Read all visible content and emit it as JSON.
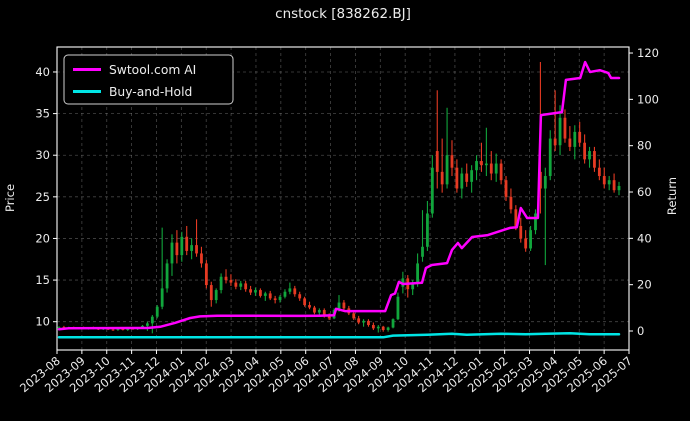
{
  "title": "cnstock [838262.BJ]",
  "legend": {
    "items": [
      {
        "label": "Swtool.com AI",
        "color": "#ff00ff"
      },
      {
        "label": "Buy-and-Hold",
        "color": "#00e5e5"
      }
    ]
  },
  "axes": {
    "left_label": "Price",
    "right_label": "Return",
    "price_ticks": [
      10,
      15,
      20,
      25,
      30,
      35,
      40
    ],
    "return_ticks": [
      0,
      20,
      40,
      60,
      80,
      100,
      120
    ],
    "x_tick_labels": [
      "2023-08",
      "2023-09",
      "2023-10",
      "2023-11",
      "2023-12",
      "2024-01",
      "2024-02",
      "2024-03",
      "2024-04",
      "2024-05",
      "2024-06",
      "2024-07",
      "2024-08",
      "2024-09",
      "2024-10",
      "2024-11",
      "2024-12",
      "2025-01",
      "2025-02",
      "2025-03",
      "2025-04",
      "2025-05",
      "2025-06",
      "2025-07"
    ],
    "left_ylim": [
      6.6,
      43.0
    ],
    "right_ylim": [
      -8.2,
      122.6
    ],
    "grid": true
  },
  "chart_data": {
    "type": "candlestick+line",
    "title": "cnstock [838262.BJ]",
    "x_range": [
      "2023-08",
      "2025-07"
    ],
    "candle_up_color": "#11a63c",
    "candle_down_color": "#e63a23",
    "candles_ohlc": [
      [
        9.3,
        9.45,
        9.15,
        9.35
      ],
      [
        9.35,
        9.5,
        9.2,
        9.25
      ],
      [
        9.25,
        9.4,
        9.1,
        9.3
      ],
      [
        9.3,
        9.4,
        9.15,
        9.2
      ],
      [
        9.2,
        9.35,
        9.1,
        9.3
      ],
      [
        9.3,
        9.4,
        9.1,
        9.15
      ],
      [
        9.15,
        9.3,
        9.05,
        9.25
      ],
      [
        9.25,
        9.4,
        9.1,
        9.15
      ],
      [
        9.15,
        9.3,
        9.0,
        9.1
      ],
      [
        9.1,
        9.25,
        9.0,
        9.2
      ],
      [
        9.2,
        9.3,
        9.0,
        9.05
      ],
      [
        9.05,
        9.2,
        8.9,
        9.0
      ],
      [
        9.0,
        9.15,
        8.9,
        9.1
      ],
      [
        9.1,
        9.25,
        8.95,
        9.0
      ],
      [
        9.0,
        9.2,
        8.9,
        9.15
      ],
      [
        9.15,
        9.3,
        9.05,
        9.1
      ],
      [
        9.1,
        9.35,
        9.0,
        9.3
      ],
      [
        9.3,
        9.6,
        9.2,
        9.5
      ],
      [
        9.5,
        10.0,
        8.9,
        9.8
      ],
      [
        9.8,
        10.8,
        8.6,
        10.6
      ],
      [
        10.6,
        12.0,
        10.4,
        11.8
      ],
      [
        11.8,
        21.3,
        11.5,
        14.0
      ],
      [
        14.0,
        17.5,
        13.5,
        17.0
      ],
      [
        17.0,
        20.5,
        15.5,
        19.5
      ],
      [
        19.5,
        21.0,
        17.0,
        18.0
      ],
      [
        18.0,
        20.8,
        17.2,
        20.2
      ],
      [
        20.2,
        21.5,
        18.0,
        18.5
      ],
      [
        18.5,
        20.0,
        17.5,
        19.2
      ],
      [
        19.2,
        22.3,
        17.8,
        18.2
      ],
      [
        18.2,
        19.0,
        16.5,
        17.0
      ],
      [
        17.0,
        17.4,
        14.0,
        14.4
      ],
      [
        14.4,
        14.8,
        11.8,
        12.6
      ],
      [
        12.6,
        14.0,
        12.2,
        13.8
      ],
      [
        13.8,
        15.8,
        13.4,
        15.4
      ],
      [
        15.4,
        16.3,
        14.6,
        15.0
      ],
      [
        15.0,
        15.7,
        14.3,
        14.7
      ],
      [
        14.7,
        15.1,
        13.9,
        14.2
      ],
      [
        14.2,
        14.9,
        13.8,
        14.6
      ],
      [
        14.6,
        14.9,
        13.6,
        13.9
      ],
      [
        13.9,
        14.3,
        13.2,
        13.5
      ],
      [
        13.5,
        14.1,
        13.1,
        13.8
      ],
      [
        13.8,
        14.0,
        12.9,
        13.1
      ],
      [
        13.1,
        13.6,
        12.5,
        13.4
      ],
      [
        13.4,
        13.7,
        12.6,
        12.8
      ],
      [
        12.8,
        13.1,
        12.2,
        12.6
      ],
      [
        12.6,
        13.2,
        12.3,
        13.0
      ],
      [
        13.0,
        13.9,
        12.8,
        13.6
      ],
      [
        13.6,
        14.7,
        13.3,
        14.0
      ],
      [
        14.0,
        14.3,
        13.0,
        13.3
      ],
      [
        13.3,
        13.6,
        12.5,
        12.8
      ],
      [
        12.8,
        13.0,
        11.8,
        12.0
      ],
      [
        12.0,
        12.4,
        11.5,
        11.7
      ],
      [
        11.7,
        11.9,
        10.9,
        11.1
      ],
      [
        11.1,
        11.6,
        10.7,
        11.4
      ],
      [
        11.4,
        11.6,
        10.5,
        10.7
      ],
      [
        10.7,
        11.0,
        10.2,
        10.4
      ],
      [
        10.4,
        11.6,
        10.3,
        11.4
      ],
      [
        11.4,
        13.2,
        11.2,
        12.3
      ],
      [
        12.3,
        12.6,
        11.3,
        11.6
      ],
      [
        11.6,
        11.9,
        10.8,
        11.0
      ],
      [
        11.0,
        11.3,
        10.2,
        10.4
      ],
      [
        10.4,
        10.7,
        9.7,
        9.9
      ],
      [
        9.9,
        10.3,
        9.4,
        10.1
      ],
      [
        10.1,
        10.3,
        9.4,
        9.6
      ],
      [
        9.6,
        9.9,
        9.0,
        9.2
      ],
      [
        9.2,
        9.6,
        8.7,
        9.4
      ],
      [
        9.4,
        9.5,
        8.8,
        9.0
      ],
      [
        9.0,
        9.4,
        8.8,
        9.3
      ],
      [
        9.3,
        10.4,
        9.2,
        10.3
      ],
      [
        10.3,
        13.5,
        10.2,
        13.0
      ],
      [
        14.2,
        16.0,
        13.4,
        15.2
      ],
      [
        15.2,
        15.6,
        12.9,
        13.9
      ],
      [
        13.9,
        15.0,
        13.2,
        14.6
      ],
      [
        14.6,
        18.2,
        14.2,
        17.0
      ],
      [
        17.8,
        23.4,
        17.2,
        19.0
      ],
      [
        19.0,
        24.5,
        18.5,
        23.0
      ],
      [
        23.0,
        30.0,
        22.5,
        28.5
      ],
      [
        30.5,
        37.8,
        26.0,
        28.0
      ],
      [
        28.0,
        32.0,
        25.5,
        26.5
      ],
      [
        26.5,
        35.7,
        26.0,
        30.0
      ],
      [
        30.0,
        31.8,
        27.5,
        28.5
      ],
      [
        28.5,
        29.5,
        25.5,
        26.0
      ],
      [
        26.0,
        28.5,
        24.8,
        27.8
      ],
      [
        27.8,
        29.0,
        26.2,
        26.8
      ],
      [
        26.8,
        28.8,
        25.5,
        28.2
      ],
      [
        28.2,
        30.0,
        27.0,
        29.3
      ],
      [
        29.3,
        31.5,
        28.0,
        28.8
      ],
      [
        28.8,
        33.3,
        27.5,
        29.0
      ],
      [
        29.0,
        30.5,
        27.0,
        27.8
      ],
      [
        27.8,
        30.2,
        26.8,
        29.0
      ],
      [
        29.0,
        29.5,
        26.5,
        27.0
      ],
      [
        27.0,
        27.5,
        24.5,
        25.0
      ],
      [
        25.0,
        26.0,
        23.0,
        23.5
      ],
      [
        23.5,
        24.0,
        21.0,
        21.5
      ],
      [
        21.5,
        22.5,
        19.5,
        20.0
      ],
      [
        20.0,
        21.0,
        18.4,
        18.8
      ],
      [
        18.8,
        21.5,
        18.5,
        21.0
      ],
      [
        21.0,
        23.5,
        20.5,
        23.0
      ],
      [
        28.0,
        41.2,
        23.0,
        26.0
      ],
      [
        26.0,
        28.5,
        16.8,
        27.5
      ],
      [
        27.5,
        33.0,
        27.0,
        32.0
      ],
      [
        32.0,
        37.8,
        30.5,
        31.2
      ],
      [
        31.2,
        36.0,
        30.0,
        34.5
      ],
      [
        34.5,
        35.5,
        31.5,
        32.0
      ],
      [
        32.0,
        33.5,
        30.5,
        31.0
      ],
      [
        31.0,
        33.6,
        29.5,
        32.8
      ],
      [
        32.8,
        34.0,
        31.0,
        31.5
      ],
      [
        31.5,
        32.5,
        29.0,
        29.5
      ],
      [
        29.5,
        31.0,
        28.5,
        30.5
      ],
      [
        30.5,
        31.0,
        28.0,
        28.5
      ],
      [
        28.5,
        29.5,
        27.0,
        27.5
      ],
      [
        27.5,
        28.5,
        26.0,
        26.5
      ],
      [
        26.5,
        27.5,
        25.8,
        27.0
      ],
      [
        27.0,
        27.8,
        25.5,
        25.8
      ],
      [
        25.8,
        26.8,
        25.2,
        26.3
      ]
    ],
    "series": [
      {
        "name": "Swtool.com AI",
        "axis": "return",
        "color": "#ff00ff",
        "width": 2.5,
        "points": [
          [
            0,
            0.8
          ],
          [
            2,
            1.2
          ],
          [
            18,
            1.3
          ],
          [
            20.6,
            1.8
          ],
          [
            23.6,
            3.5
          ],
          [
            26.7,
            5.6
          ],
          [
            28.7,
            6.3
          ],
          [
            32.2,
            6.6
          ],
          [
            34.8,
            6.6
          ],
          [
            49,
            6.5
          ],
          [
            53,
            6.6
          ],
          [
            56,
            6.8
          ],
          [
            56.4,
            9.6
          ],
          [
            57.5,
            9.0
          ],
          [
            58.2,
            8.6
          ],
          [
            66.4,
            8.6
          ],
          [
            67.6,
            15.5
          ],
          [
            68.4,
            16.2
          ],
          [
            69.2,
            21.2
          ],
          [
            70,
            20.3
          ],
          [
            73.9,
            20.8
          ],
          [
            74.7,
            27.2
          ],
          [
            75.9,
            28.5
          ],
          [
            79,
            29.3
          ],
          [
            80,
            35.0
          ],
          [
            81.2,
            38.0
          ],
          [
            82,
            35.8
          ],
          [
            84.1,
            40.6
          ],
          [
            87.3,
            41.4
          ],
          [
            91.8,
            44.5
          ],
          [
            93.2,
            44.8
          ],
          [
            94,
            53.1
          ],
          [
            95.3,
            48.8
          ],
          [
            97.5,
            48.8
          ],
          [
            98.1,
            93.2
          ],
          [
            102.4,
            94.5
          ],
          [
            103.2,
            108.4
          ],
          [
            106.1,
            109.2
          ],
          [
            107.1,
            116.1
          ],
          [
            108.1,
            111.8
          ],
          [
            110.1,
            112.6
          ],
          [
            111.8,
            111.4
          ],
          [
            112.4,
            109.2
          ],
          [
            114,
            109.2
          ]
        ]
      },
      {
        "name": "Buy-and-Hold",
        "axis": "return",
        "color": "#00e5e5",
        "width": 2.5,
        "points": [
          [
            0,
            -2.7
          ],
          [
            66,
            -2.7
          ],
          [
            68,
            -2.0
          ],
          [
            75,
            -1.6
          ],
          [
            80,
            -1.2
          ],
          [
            83,
            -1.6
          ],
          [
            90,
            -1.2
          ],
          [
            95,
            -1.4
          ],
          [
            99,
            -1.2
          ],
          [
            104,
            -1.0
          ],
          [
            108,
            -1.4
          ],
          [
            114,
            -1.4
          ]
        ]
      }
    ]
  }
}
